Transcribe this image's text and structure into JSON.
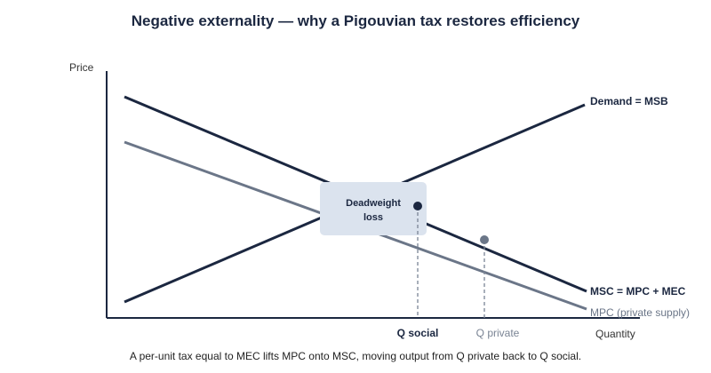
{
  "title": "Negative externality — why a Pigouvian tax restores efficiency",
  "axes": {
    "y_label": "Price",
    "x_label": "Quantity"
  },
  "curves": {
    "demand": {
      "label": "Demand = MSB",
      "color": "#1b2740"
    },
    "msc": {
      "label": "MSC = MPC + MEC",
      "color": "#1b2740"
    },
    "mpc": {
      "label": "MPC (private supply)",
      "color": "#6b7688"
    }
  },
  "markers": {
    "q_social": {
      "label": "Q social",
      "color": "#1b2740"
    },
    "q_private": {
      "label": "Q private",
      "color": "#7a8494"
    }
  },
  "deadweight": {
    "line1": "Deadweight",
    "line2": "loss",
    "fill": "#dbe3ee"
  },
  "caption": "A per-unit tax equal to MEC lifts MPC onto MSC, moving output from Q private back to Q social."
}
